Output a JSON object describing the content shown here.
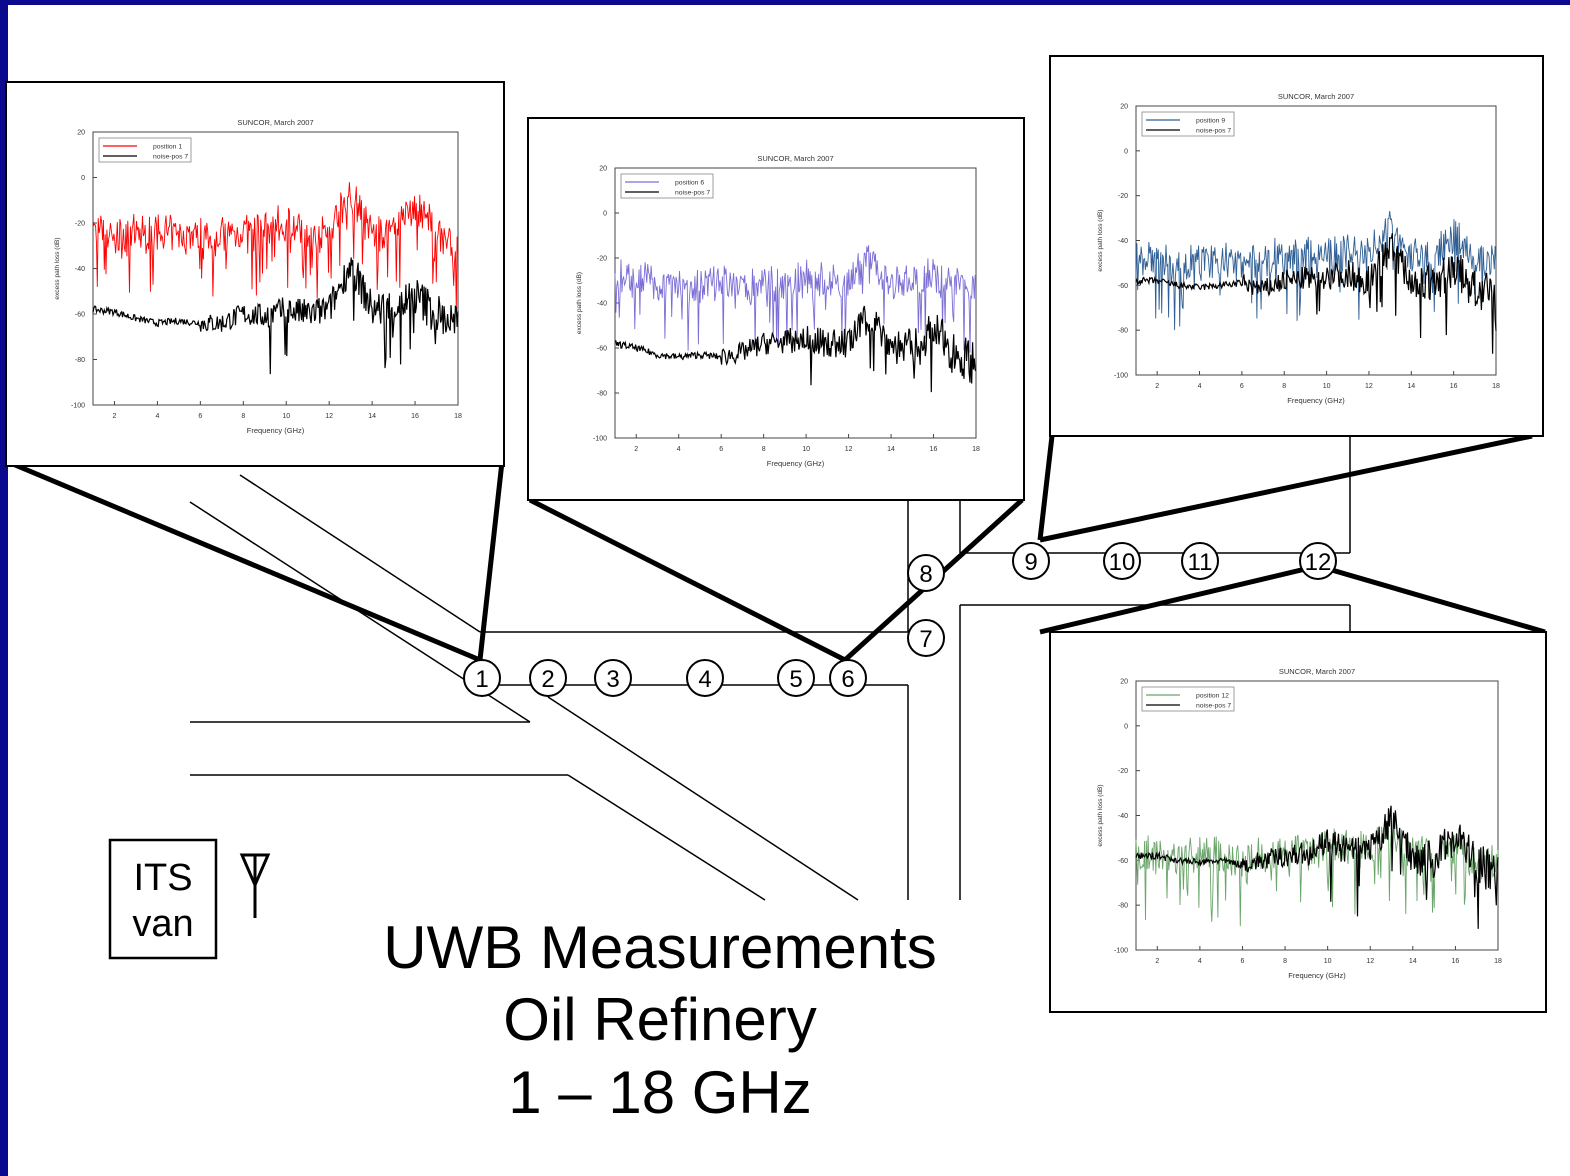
{
  "title": {
    "line1": "UWB Measurements",
    "line2": "Oil Refinery",
    "line3": "1 – 18 GHz"
  },
  "van": {
    "line1": "ITS",
    "line2": "van"
  },
  "positions": [
    "1",
    "2",
    "3",
    "4",
    "5",
    "6",
    "7",
    "8",
    "9",
    "10",
    "11",
    "12"
  ],
  "plot_common": {
    "title": "SUNCOR, March 2007",
    "xlabel": "Frequency (GHz)",
    "ylabel": "excess path loss (dB)",
    "xticks": [
      "2",
      "4",
      "6",
      "8",
      "10",
      "12",
      "14",
      "16",
      "18"
    ],
    "yticks": [
      "20",
      "0",
      "-20",
      "-40",
      "-60",
      "-80",
      "-100"
    ]
  },
  "colors": {
    "background": "#0b0a8f",
    "pos1": "#ff0000",
    "pos6": "#7b6fd6",
    "pos9": "#2f5f95",
    "pos12": "#6aa56a",
    "noise": "#000000"
  },
  "chart_data": [
    {
      "type": "line",
      "title": "SUNCOR, March 2007",
      "xlabel": "Frequency (GHz)",
      "ylabel": "excess path loss (dB)",
      "xlim": [
        1,
        18
      ],
      "ylim": [
        -100,
        20
      ],
      "legend": "top-left",
      "x": [
        1,
        2,
        3,
        4,
        5,
        6,
        7,
        8,
        9,
        10,
        11,
        12,
        13,
        14,
        15,
        16,
        17,
        18
      ],
      "series": [
        {
          "name": "position 1",
          "values": [
            -24,
            -26,
            -25,
            -25,
            -26,
            -25,
            -26,
            -24,
            -25,
            -20,
            -24,
            -25,
            -5,
            -25,
            -24,
            -12,
            -25,
            -30
          ]
        },
        {
          "name": "noise-pos 7",
          "values": [
            -58,
            -59,
            -62,
            -64,
            -63,
            -64,
            -64,
            -60,
            -61,
            -58,
            -60,
            -58,
            -38,
            -58,
            -57,
            -52,
            -60,
            -65
          ]
        }
      ]
    },
    {
      "type": "line",
      "title": "SUNCOR, March 2007",
      "xlabel": "Frequency (GHz)",
      "ylabel": "excess path loss (dB)",
      "xlim": [
        1,
        18
      ],
      "ylim": [
        -100,
        20
      ],
      "legend": "top-left",
      "x": [
        1,
        2,
        3,
        4,
        5,
        6,
        7,
        8,
        9,
        10,
        11,
        12,
        13,
        14,
        15,
        16,
        17,
        18
      ],
      "series": [
        {
          "name": "position 6",
          "values": [
            -30,
            -28,
            -32,
            -30,
            -33,
            -31,
            -34,
            -30,
            -32,
            -30,
            -31,
            -30,
            -20,
            -31,
            -30,
            -27,
            -32,
            -33
          ]
        },
        {
          "name": "noise-pos 7",
          "values": [
            -58,
            -60,
            -63,
            -64,
            -63,
            -64,
            -62,
            -58,
            -57,
            -56,
            -58,
            -58,
            -45,
            -59,
            -60,
            -52,
            -62,
            -67
          ]
        }
      ]
    },
    {
      "type": "line",
      "title": "SUNCOR, March 2007",
      "xlabel": "Frequency (GHz)",
      "ylabel": "excess path loss (dB)",
      "xlim": [
        1,
        18
      ],
      "ylim": [
        -100,
        20
      ],
      "legend": "top-left",
      "x": [
        1,
        2,
        3,
        4,
        5,
        6,
        7,
        8,
        9,
        10,
        11,
        12,
        13,
        14,
        15,
        16,
        17,
        18
      ],
      "series": [
        {
          "name": "position 9",
          "values": [
            -50,
            -50,
            -50,
            -49,
            -50,
            -50,
            -49,
            -48,
            -47,
            -48,
            -45,
            -47,
            -30,
            -48,
            -47,
            -38,
            -48,
            -50
          ]
        },
        {
          "name": "noise-pos 7",
          "values": [
            -58,
            -58,
            -60,
            -61,
            -60,
            -59,
            -62,
            -58,
            -57,
            -56,
            -55,
            -58,
            -42,
            -58,
            -60,
            -52,
            -62,
            -66
          ]
        }
      ]
    },
    {
      "type": "line",
      "title": "SUNCOR, March 2007",
      "xlabel": "Frequency (GHz)",
      "ylabel": "excess path loss (dB)",
      "xlim": [
        1,
        18
      ],
      "ylim": [
        -100,
        20
      ],
      "legend": "top-left",
      "x": [
        1,
        2,
        3,
        4,
        5,
        6,
        7,
        8,
        9,
        10,
        11,
        12,
        13,
        14,
        15,
        16,
        17,
        18
      ],
      "series": [
        {
          "name": "position 12",
          "values": [
            -58,
            -58,
            -58,
            -57,
            -58,
            -60,
            -58,
            -56,
            -56,
            -55,
            -54,
            -55,
            -48,
            -57,
            -57,
            -55,
            -60,
            -62
          ]
        },
        {
          "name": "noise-pos 7",
          "values": [
            -58,
            -58,
            -60,
            -61,
            -60,
            -62,
            -60,
            -58,
            -57,
            -52,
            -56,
            -56,
            -42,
            -58,
            -60,
            -48,
            -62,
            -66
          ]
        }
      ]
    }
  ]
}
